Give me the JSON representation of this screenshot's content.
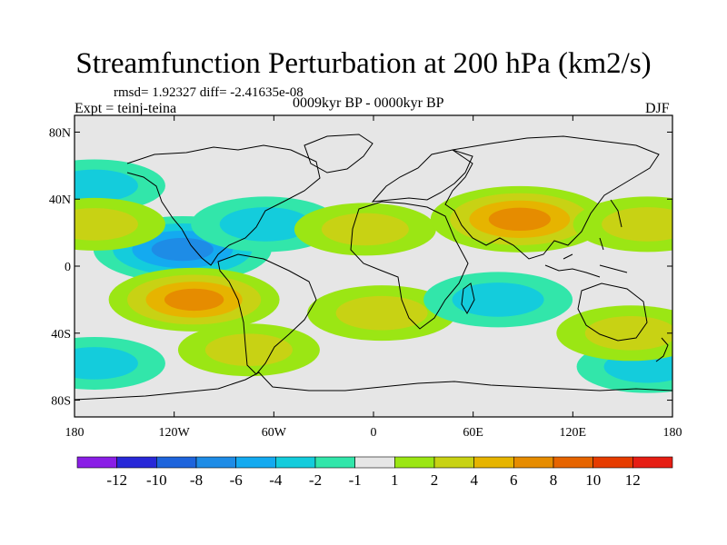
{
  "chart_data": {
    "type": "heatmap",
    "title": "Streamfunction Perturbation at 200 hPa (km2/s)",
    "stats": "rmsd= 1.92327 diff= -2.41635e-08",
    "experiment": "Expt = teinj-teina",
    "period": "0009kyr BP - 0000kyr BP",
    "season": "DJF",
    "projection": "cylindrical-equidistant",
    "xlim": [
      -180,
      180
    ],
    "ylim": [
      -90,
      90
    ],
    "x_ticks": [
      {
        "value": -180,
        "label": "180"
      },
      {
        "value": -120,
        "label": "120W"
      },
      {
        "value": -60,
        "label": "60W"
      },
      {
        "value": 0,
        "label": "0"
      },
      {
        "value": 60,
        "label": "60E"
      },
      {
        "value": 120,
        "label": "120E"
      },
      {
        "value": 180,
        "label": "180"
      }
    ],
    "y_ticks": [
      {
        "value": 80,
        "label": "80N"
      },
      {
        "value": 40,
        "label": "40N"
      },
      {
        "value": 0,
        "label": "0"
      },
      {
        "value": -40,
        "label": "40S"
      },
      {
        "value": -80,
        "label": "80S"
      }
    ],
    "colorbar": {
      "labels": [
        "-12",
        "-10",
        "-8",
        "-6",
        "-4",
        "-2",
        "-1",
        "1",
        "2",
        "4",
        "6",
        "8",
        "10",
        "12"
      ],
      "levels": [
        -12,
        -10,
        -8,
        -6,
        -4,
        -2,
        -1,
        1,
        2,
        4,
        6,
        8,
        10,
        12
      ],
      "colors": [
        "#8a1ee6",
        "#2828d8",
        "#1e64dc",
        "#1e8ce6",
        "#14aaf0",
        "#14ccdc",
        "#32e6aa",
        "#e6e6e6",
        "#9be614",
        "#c8d214",
        "#e6b400",
        "#e68c00",
        "#e66400",
        "#e63c00",
        "#e61e14"
      ]
    },
    "anomalies": [
      {
        "lon": -115,
        "lat": 10,
        "value": -7
      },
      {
        "lon": -65,
        "lat": 25,
        "value": -3
      },
      {
        "lon": -168,
        "lat": 48,
        "value": -2
      },
      {
        "lon": -5,
        "lat": 22,
        "value": 2
      },
      {
        "lon": 88,
        "lat": 28,
        "value": 7
      },
      {
        "lon": 165,
        "lat": 25,
        "value": 3
      },
      {
        "lon": -108,
        "lat": -20,
        "value": 6
      },
      {
        "lon": -75,
        "lat": -50,
        "value": 2
      },
      {
        "lon": 5,
        "lat": -28,
        "value": 3
      },
      {
        "lon": 75,
        "lat": -20,
        "value": -3
      },
      {
        "lon": 165,
        "lat": -60,
        "value": -2
      },
      {
        "lon": 155,
        "lat": -40,
        "value": 3
      },
      {
        "lon": -168,
        "lat": -58,
        "value": -2
      },
      {
        "lon": -168,
        "lat": 25,
        "value": 2
      }
    ]
  }
}
